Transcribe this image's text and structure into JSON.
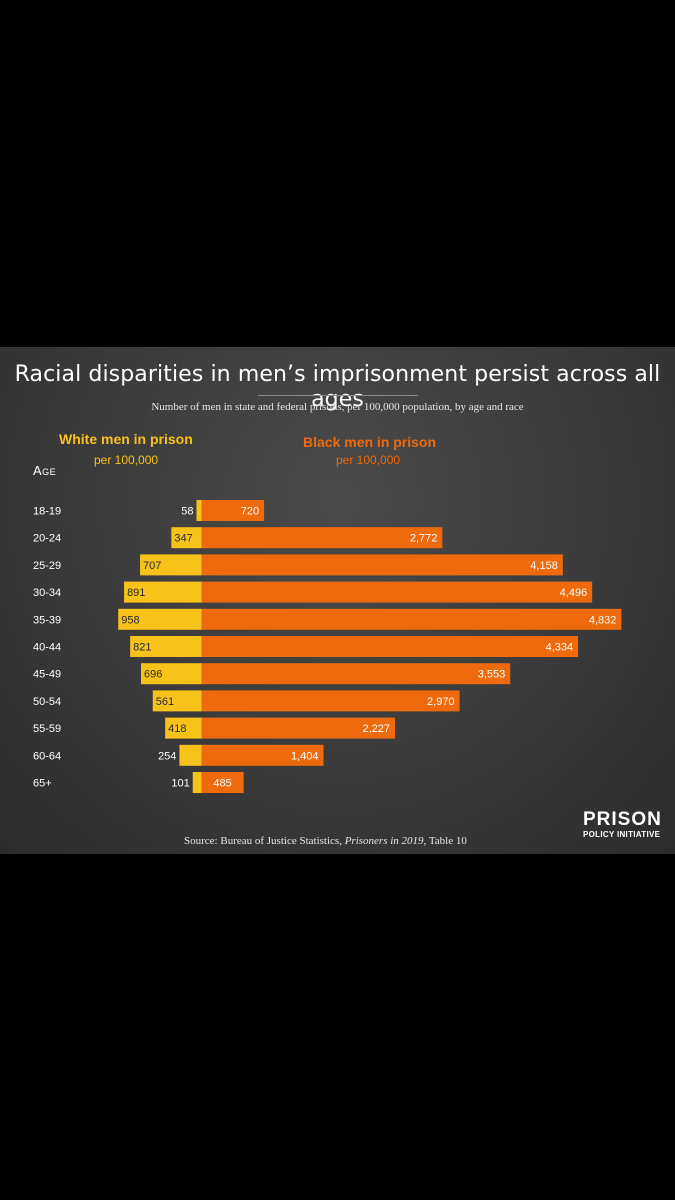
{
  "title": "Racial disparities in men’s imprisonment persist across all ages",
  "subtitle": "Number of men in state and federal prisons, per 100,000 population, by age and race",
  "legend": {
    "white_title": "White men in prison",
    "white_sub": "per 100,000",
    "black_title": "Black men in prison",
    "black_sub": "per 100,000"
  },
  "age_header": "Age",
  "source": {
    "prefix": "Source: Bureau of Justice Statistics, ",
    "italic": "Prisoners in 2019",
    "suffix": ", Table 10"
  },
  "logo": {
    "top": "PRISON",
    "bottom": "POLICY INITIATIVE"
  },
  "colors": {
    "white_bar": "#f7c21a",
    "black_bar": "#ee6a0c",
    "background": "#3a3a3a"
  },
  "chart_data": {
    "type": "bar",
    "orientation": "horizontal-diverging",
    "title": "Racial disparities in men’s imprisonment persist across all ages",
    "subtitle": "Number of men in state and federal prisons, per 100,000 population, by age and race",
    "ylabel": "Age",
    "categories": [
      "18-19",
      "20-24",
      "25-29",
      "30-34",
      "35-39",
      "40-44",
      "45-49",
      "50-54",
      "55-59",
      "60-64",
      "65+"
    ],
    "series": [
      {
        "name": "White men in prison",
        "values": [
          58,
          347,
          707,
          891,
          958,
          821,
          696,
          561,
          418,
          254,
          101
        ]
      },
      {
        "name": "Black men in prison",
        "values": [
          720,
          2772,
          4158,
          4496,
          4832,
          4334,
          3553,
          2970,
          2227,
          1404,
          485
        ]
      }
    ],
    "value_labels": {
      "white": [
        "58",
        "347",
        "707",
        "891",
        "958",
        "821",
        "696",
        "561",
        "418",
        "254",
        "101"
      ],
      "black": [
        "720",
        "2,772",
        "4,158",
        "4,496",
        "4,832",
        "4,334",
        "3,553",
        "2,970",
        "2,227",
        "1,404",
        "485"
      ]
    }
  }
}
